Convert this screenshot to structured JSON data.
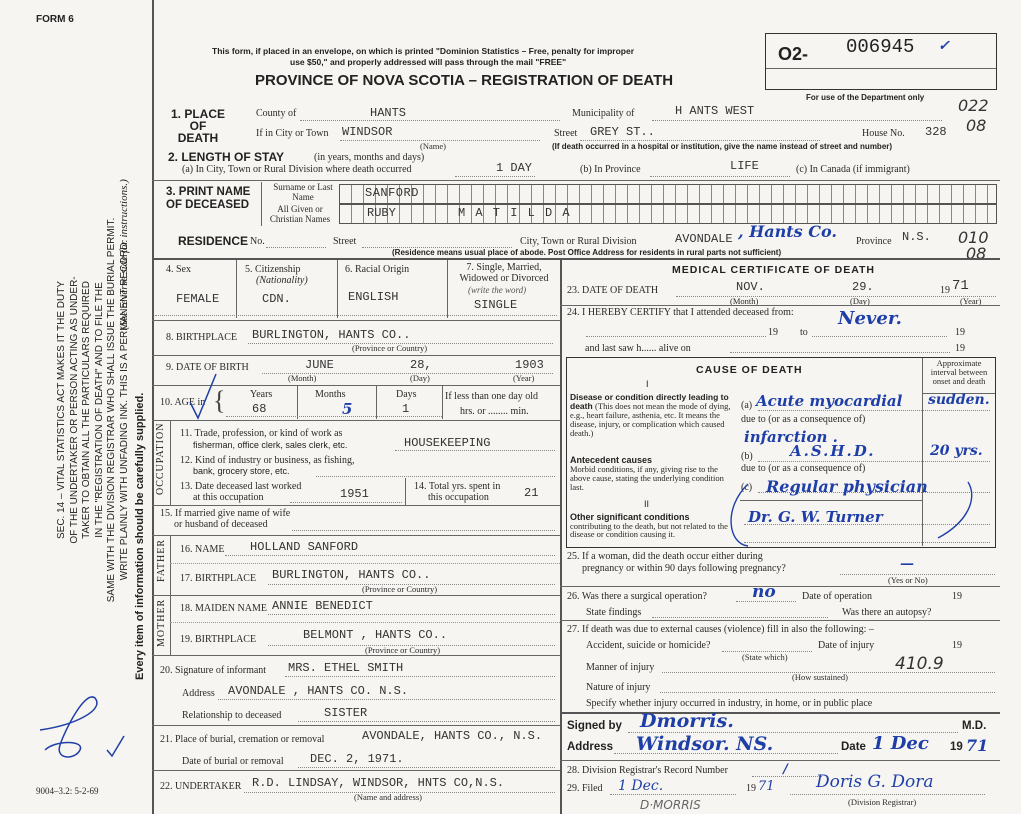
{
  "header": {
    "form_number": "FORM 6",
    "mail_notice_1": "This form, if placed in an envelope, on which is printed \"Dominion Statistics – Free, penalty for improper",
    "mail_notice_2": "use $50,\" and properly addressed will pass through the mail \"FREE\"",
    "title": "PROVINCE OF NOVA SCOTIA – REGISTRATION OF DEATH",
    "reg_prefix": "O2-",
    "reg_number": "006945",
    "reg_check": "✓",
    "dept_use_label": "For use of the Department only",
    "dept_codes": [
      "022",
      "08",
      "010",
      "08"
    ]
  },
  "sidebar": {
    "statute_lines": [
      "SEC. 14 – VITAL STATISTICS ACT MAKES IT THE DUTY",
      "OF THE UNDERTAKER OR PERSON ACTING AS UNDER-",
      "TAKER TO OBTAIN ALL THE PARTICULARS REQUIRED",
      "IN THE \"REGISTRATION OF DEATH\" AND TO FILE THE",
      "SAME WITH THE DIVISION REGISTRAR WHO SHALL ISSUE THE BURIAL PERMIT.",
      "WRITE PLAINLY WITH UNFADING INK. THIS IS A PERMANENT RECORD."
    ],
    "every_item": "Every item of information should be carefully supplied.",
    "see_reverse": "(See reverse side for instructions.)",
    "print_code": "9004–3.2: 5-2-69"
  },
  "place_of_death": {
    "label": "1. PLACE OF DEATH",
    "county_label": "County of",
    "county": "HANTS",
    "municipality_label": "Municipality of",
    "municipality": "H ANTS WEST",
    "city_label": "If in City or Town",
    "city": "WINDSOR",
    "name_note": "(Name)",
    "street_label": "Street",
    "street": "GREY ST..",
    "house_label": "House No.",
    "house": "328",
    "hospital_note": "(If death occurred in a hospital or institution, give the name instead of street and number)"
  },
  "length_of_stay": {
    "label": "2. LENGTH OF STAY",
    "label_note": "(in years, months and days)",
    "a_label": "(a) In City, Town or Rural Division where death occurred",
    "a": "1 DAY",
    "b_label": "(b) In Province",
    "b": "LIFE",
    "c_label": "(c) In Canada (if immigrant)"
  },
  "name": {
    "label": "3. PRINT NAME OF DECEASED",
    "surname_label": "Surname or Last Name",
    "surname": "SANFORD",
    "given_label": "All Given or Christian Names",
    "given": "RUBY",
    "middle": "M A T I L D A"
  },
  "residence": {
    "label": "RESIDENCE",
    "no_label": "No.",
    "street_label": "Street",
    "city_label": "City, Town or Rural Division",
    "city": "AVONDALE",
    "city_handwritten": ", Hants Co.",
    "province_label": "Province",
    "province": "N.S.",
    "note": "(Residence means usual place of abode. Post Office Address for residents in rural parts not sufficient)"
  },
  "personal": {
    "sex_label": "4. Sex",
    "sex": "FEMALE",
    "citizenship_label": "5. Citizenship",
    "citizenship_note": "(Nationality)",
    "citizenship": "CDN.",
    "racial_label": "6. Racial Origin",
    "racial": "ENGLISH",
    "marital_label": "7. Single, Married, Widowed or Divorced",
    "marital_note": "(write the word)",
    "marital": "SINGLE",
    "birthplace_label": "8. BIRTHPLACE",
    "birthplace": "BURLINGTON, HANTS CO..",
    "province_note": "(Province or Country)",
    "dob_label": "9. DATE OF BIRTH",
    "dob_month": "JUNE",
    "dob_day": "28,",
    "dob_year": "1903",
    "month_note": "(Month)",
    "day_note": "(Day)",
    "year_note": "(Year)",
    "age_label": "10. AGE in",
    "years_label": "Years",
    "years": "68",
    "months_label": "Months",
    "months": "5",
    "days_label": "Days",
    "days": "1",
    "less_than_day": "If less than one day old",
    "hrs_min": "hrs. or ........ min."
  },
  "occupation": {
    "side_label": "OCCUPATION",
    "q11": "11. Trade, profession, or kind of work as",
    "q11b": "fisherman, office clerk, sales clerk, etc.",
    "a11": "HOUSEKEEPING",
    "q12": "12. Kind of industry or business, as fishing,",
    "q12b": "bank, grocery store, etc.",
    "q13": "13. Date deceased last worked",
    "q13b": "at this occupation",
    "a13": "1951",
    "q14": "14. Total yrs. spent in",
    "q14b": "this occupation",
    "a14": "21",
    "q15": "15. If married give name of wife",
    "q15b": "or husband of deceased"
  },
  "father": {
    "side_label": "FATHER",
    "name_label": "16. NAME",
    "name": "HOLLAND SANFORD",
    "birthplace_label": "17. BIRTHPLACE",
    "birthplace": "BURLINGTON, HANTS CO..",
    "province_note": "(Province or Country)"
  },
  "mother": {
    "side_label": "MOTHER",
    "name_label": "18. MAIDEN NAME",
    "name": "ANNIE BENEDICT",
    "birthplace_label": "19. BIRTHPLACE",
    "birthplace": "BELMONT , HANTS CO..",
    "province_note": "(Province or Country)"
  },
  "informant": {
    "sig_label": "20. Signature of informant",
    "sig": "MRS. ETHEL SMITH",
    "address_label": "Address",
    "address": "AVONDALE , HANTS CO. N.S.",
    "rel_label": "Relationship to deceased",
    "rel": "SISTER"
  },
  "burial": {
    "place_label": "21. Place of burial, cremation or removal",
    "place": "AVONDALE, HANTS CO., N.S.",
    "date_label": "Date of burial or removal",
    "date": "DEC. 2, 1971."
  },
  "undertaker": {
    "label": "22. UNDERTAKER",
    "value": "R.D. LINDSAY, WINDSOR, HNTS CO,N.S.",
    "note": "(Name and address)"
  },
  "medical": {
    "title": "MEDICAL CERTIFICATE OF DEATH",
    "dod_label": "23. DATE OF DEATH",
    "dod_month": "NOV.",
    "dod_day": "29.",
    "dod_year_prefix": "19",
    "dod_year": "71",
    "certify_label": "24. I HEREBY CERTIFY that I attended deceased from:",
    "attended": "Never.",
    "nineteen": "19",
    "to": "to",
    "last_saw": "and last saw h...... alive on",
    "cause_title": "CAUSE OF DEATH",
    "interval_label": "Approximate interval between onset and death",
    "roman_1": "I",
    "roman_2": "II",
    "direct_label": "Disease or condition directly leading to death",
    "direct_note": "(This does not mean the mode of dying, e.g., heart failure, asthenia, etc. It means the disease, injury, or complication which caused death.)",
    "antecedent_label": "Antecedent causes",
    "antecedent_note": "Morbid conditions, if any, giving rise to the above cause, stating the underlying condition last.",
    "other_label": "Other significant conditions",
    "other_note": "contributing to the death, but not related to the disease or condition causing it.",
    "a_mark": "(a)",
    "b_mark": "(b)",
    "c_mark": "(c)",
    "due_to": "due to (or as a consequence of)",
    "cause_a": "Acute myocardial",
    "cause_a_interval": "sudden.",
    "cause_a2": "infarction .",
    "cause_b": "A.S.H.D.",
    "cause_b_interval": "20 yrs.",
    "cause_c": "Regular physician",
    "other": "Dr. G. W. Turner"
  },
  "questions": {
    "q25": "25. If a woman, did the death occur either during",
    "q25b": "pregnancy or within 90 days following pregnancy?",
    "yes_no": "(Yes or No)",
    "a25": "—",
    "q26": "26. Was there a surgical operation?",
    "a26": "no",
    "op_date_label": "Date of operation",
    "nineteen": "19",
    "findings_label": "State findings",
    "autopsy_label": "Was there an autopsy?",
    "q27": "27. If death was due to external causes (violence) fill in also the following: –",
    "accident_label": "Accident, suicide or homicide?",
    "state_which": "(State which)",
    "injury_date_label": "Date of injury",
    "manner_label": "Manner of injury",
    "how_sustained": "(How sustained)",
    "code": "410.9",
    "nature_label": "Nature of injury",
    "specify_label": "Specify whether injury occurred in industry, in home, or in public place"
  },
  "signature": {
    "signed_label": "Signed by",
    "signed": "Dmorris.",
    "md": "M.D.",
    "address_label": "Address",
    "address": "Windsor. NS.",
    "date_label": "Date",
    "date": "1 Dec",
    "year_prefix": "19",
    "year": "71"
  },
  "registrar": {
    "record_label": "28. Division Registrar's Record Number",
    "record": "/",
    "filed_label": "29. Filed",
    "filed": "1 Dec.",
    "year_prefix": "19",
    "year": "71",
    "registrar_sig": "Doris G. Dora",
    "registrar_label": "(Division Registrar)",
    "pencil_note": "D·MORRIS"
  },
  "colors": {
    "ink": "#1f3fa8",
    "paper": "#f7f5f1",
    "print": "#222222"
  }
}
